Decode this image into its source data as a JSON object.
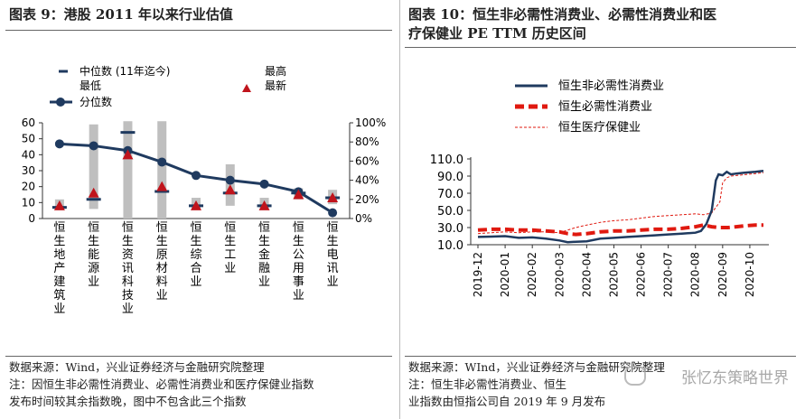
{
  "left": {
    "title": "图表 9：港股 2011 年以来行业估值",
    "legend": {
      "median": "中位数 (11年迄今)",
      "high": "最高",
      "low": "最低",
      "latest": "最新",
      "percentile": "分位数"
    },
    "source_lines": [
      "数据来源：Wind，兴业证券经济与金融研究院整理",
      "注：因恒生非必需性消费业、必需性消费业和医疗保健业指数",
      "发布时间较其余指数晚，图中不包含此三个指数"
    ]
  },
  "right": {
    "title_line1": "图表 10：恒生非必需性消费业、必需性消费业和医",
    "title_line2": "疗保健业 PE TTM 历史区间",
    "source_lines": [
      "数据来源：WInd，兴业证券经济与金融研究院整理",
      "注：恒生非必需性消费业、恒生",
      "业指数由恒指公司自 2019 年 9 月发布"
    ]
  },
  "watermark": "张忆东策略世界",
  "colors": {
    "navy": "#1f3a5f",
    "red": "#e0190f",
    "bar_gray": "#bfbfbf",
    "latest_red": "#c0141c"
  },
  "chart_data": [
    {
      "type": "bar",
      "categories": [
        "恒生地产建筑业",
        "恒生能源业",
        "恒生资讯科技业",
        "恒生原材料业",
        "恒生综合业",
        "恒生工业",
        "恒生金融业",
        "恒生公用事业",
        "恒生电讯业"
      ],
      "series": [
        {
          "name": "最低",
          "values": [
            6,
            6,
            0,
            0,
            6,
            8,
            6,
            12,
            9
          ]
        },
        {
          "name": "最高",
          "values": [
            12,
            59,
            61,
            61,
            13,
            34,
            13,
            19,
            18
          ]
        },
        {
          "name": "中位数 (11年迄今)",
          "values": [
            7,
            12,
            54,
            17,
            8,
            16,
            8,
            16,
            13
          ]
        },
        {
          "name": "最新",
          "values": [
            8,
            16,
            40,
            20,
            8,
            18,
            8,
            15,
            13
          ]
        },
        {
          "name": "分位数",
          "axis": "right",
          "values": [
            0.78,
            0.76,
            0.71,
            0.59,
            0.45,
            0.4,
            0.36,
            0.28,
            0.06
          ]
        }
      ],
      "ylim": [
        0,
        60
      ],
      "yticks": [
        0,
        10,
        20,
        30,
        40,
        50,
        60
      ],
      "y2lim": [
        0,
        1
      ],
      "y2ticks": [
        "0%",
        "20%",
        "40%",
        "60%",
        "80%",
        "100%"
      ],
      "legend": "top-left"
    },
    {
      "type": "line",
      "x_labels": [
        "2019-12",
        "2020-01",
        "2020-02",
        "2020-03",
        "2020-04",
        "2020-05",
        "2020-06",
        "2020-07",
        "2020-08",
        "2020-09",
        "2020-10"
      ],
      "ylim": [
        10,
        110
      ],
      "yticks": [
        "10.0",
        "30.0",
        "50.0",
        "70.0",
        "90.0",
        "110.0"
      ],
      "legend": "top-left",
      "series": [
        {
          "name": "恒生非必需性消费业",
          "style": "solid",
          "values": [
            [
              0,
              19
            ],
            [
              0.5,
              19.5
            ],
            [
              1,
              20
            ],
            [
              1.5,
              18
            ],
            [
              2,
              18.5
            ],
            [
              2.5,
              17
            ],
            [
              3,
              15
            ],
            [
              3.3,
              13
            ],
            [
              3.6,
              13.5
            ],
            [
              4,
              14
            ],
            [
              4.5,
              17
            ],
            [
              5,
              18
            ],
            [
              5.5,
              19
            ],
            [
              6,
              20
            ],
            [
              6.5,
              21
            ],
            [
              7,
              22
            ],
            [
              7.5,
              23
            ],
            [
              8,
              24
            ],
            [
              8.2,
              26
            ],
            [
              8.4,
              34
            ],
            [
              8.6,
              50
            ],
            [
              8.75,
              85
            ],
            [
              8.85,
              92
            ],
            [
              9.0,
              91
            ],
            [
              9.15,
              95
            ],
            [
              9.3,
              92
            ],
            [
              9.5,
              93
            ],
            [
              9.8,
              94
            ],
            [
              10.2,
              95
            ],
            [
              10.5,
              96
            ]
          ]
        },
        {
          "name": "恒生必需性消费业",
          "style": "dashed",
          "values": [
            [
              0,
              27
            ],
            [
              0.5,
              28
            ],
            [
              1,
              28
            ],
            [
              1.5,
              27
            ],
            [
              2,
              27
            ],
            [
              2.5,
              26
            ],
            [
              3,
              25
            ],
            [
              3.3,
              23
            ],
            [
              3.6,
              22
            ],
            [
              4,
              23
            ],
            [
              4.5,
              25
            ],
            [
              5,
              26
            ],
            [
              5.5,
              26
            ],
            [
              6,
              27
            ],
            [
              6.5,
              28
            ],
            [
              7,
              28
            ],
            [
              7.5,
              29
            ],
            [
              8,
              31
            ],
            [
              8.3,
              33
            ],
            [
              8.6,
              31
            ],
            [
              8.9,
              30
            ],
            [
              9.2,
              30
            ],
            [
              9.5,
              31
            ],
            [
              9.8,
              32
            ],
            [
              10.2,
              33
            ],
            [
              10.5,
              33
            ]
          ]
        },
        {
          "name": "恒生医疗保健业",
          "style": "dotted",
          "values": [
            [
              0,
              23
            ],
            [
              0.5,
              24
            ],
            [
              1,
              25
            ],
            [
              1.5,
              24
            ],
            [
              2,
              25
            ],
            [
              2.5,
              25
            ],
            [
              3,
              24
            ],
            [
              3.3,
              27
            ],
            [
              3.6,
              30
            ],
            [
              4,
              33
            ],
            [
              4.5,
              36
            ],
            [
              5,
              38
            ],
            [
              5.5,
              39
            ],
            [
              6,
              41
            ],
            [
              6.5,
              43
            ],
            [
              7,
              44
            ],
            [
              7.5,
              45
            ],
            [
              8,
              46
            ],
            [
              8.3,
              45
            ],
            [
              8.6,
              47
            ],
            [
              8.9,
              60
            ],
            [
              9.0,
              82
            ],
            [
              9.15,
              88
            ],
            [
              9.3,
              90
            ],
            [
              9.6,
              91
            ],
            [
              9.9,
              92
            ],
            [
              10.2,
              93
            ],
            [
              10.5,
              94
            ]
          ]
        }
      ]
    }
  ]
}
